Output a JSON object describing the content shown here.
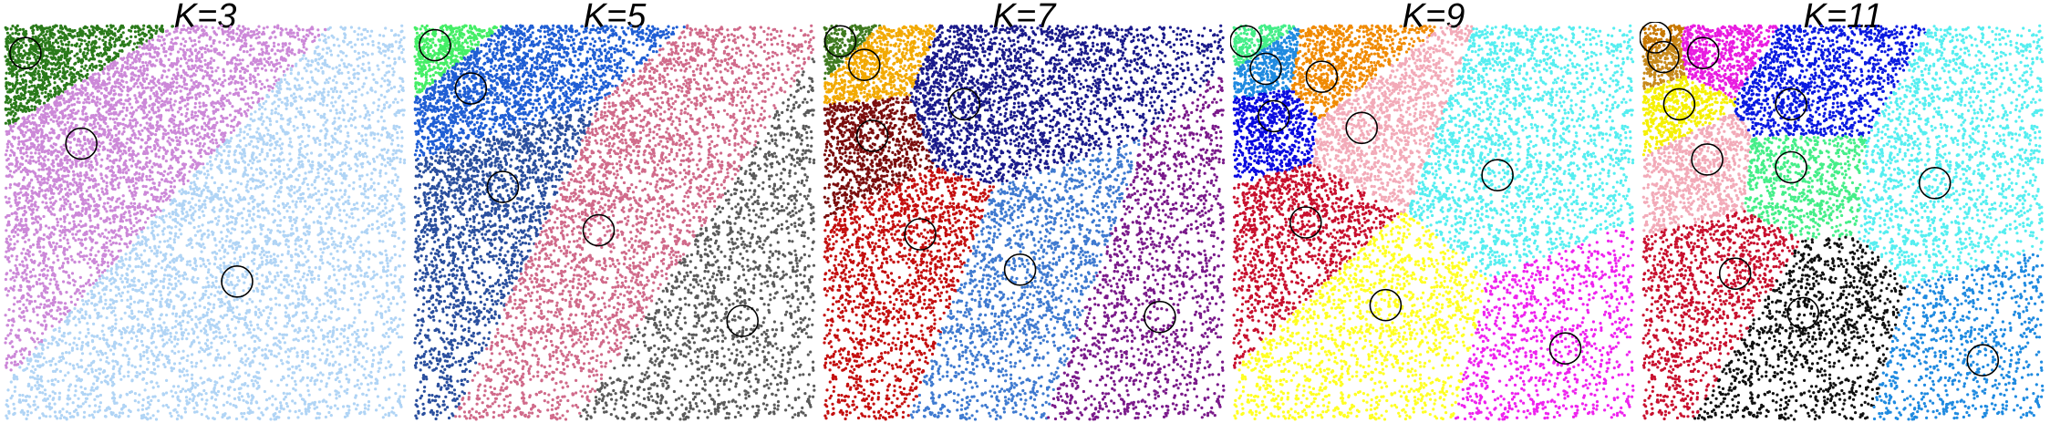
{
  "chart_data": [
    {
      "type": "scatter",
      "title": "K=3",
      "k": 3,
      "xlim": [
        0,
        1
      ],
      "ylim": [
        0,
        1
      ],
      "centroids": [
        {
          "x": 0.05,
          "y": 0.93,
          "color": "#2a7a1a"
        },
        {
          "x": 0.19,
          "y": 0.7,
          "color": "#cc88d8"
        },
        {
          "x": 0.58,
          "y": 0.35,
          "color": "#b0d4f5"
        }
      ]
    },
    {
      "type": "scatter",
      "title": "K=5",
      "k": 5,
      "xlim": [
        0,
        1
      ],
      "ylim": [
        0,
        1
      ],
      "centroids": [
        {
          "x": 0.05,
          "y": 0.95,
          "color": "#44ee66"
        },
        {
          "x": 0.14,
          "y": 0.84,
          "color": "#1f5ed4"
        },
        {
          "x": 0.22,
          "y": 0.59,
          "color": "#2a4f9e"
        },
        {
          "x": 0.46,
          "y": 0.48,
          "color": "#d06a8a"
        },
        {
          "x": 0.82,
          "y": 0.25,
          "color": "#5a5a5a"
        }
      ]
    },
    {
      "type": "scatter",
      "title": "K=7",
      "k": 7,
      "xlim": [
        0,
        1
      ],
      "ylim": [
        0,
        1
      ],
      "centroids": [
        {
          "x": 0.04,
          "y": 0.96,
          "color": "#3f7a1f"
        },
        {
          "x": 0.1,
          "y": 0.9,
          "color": "#f2a900"
        },
        {
          "x": 0.12,
          "y": 0.72,
          "color": "#7a0d0d"
        },
        {
          "x": 0.35,
          "y": 0.8,
          "color": "#1a1a8a"
        },
        {
          "x": 0.24,
          "y": 0.47,
          "color": "#c40f0f"
        },
        {
          "x": 0.49,
          "y": 0.38,
          "color": "#3f7ad0"
        },
        {
          "x": 0.84,
          "y": 0.26,
          "color": "#7a1a8a"
        }
      ]
    },
    {
      "type": "scatter",
      "title": "K=9",
      "k": 9,
      "xlim": [
        0,
        1
      ],
      "ylim": [
        0,
        1
      ],
      "centroids": [
        {
          "x": 0.03,
          "y": 0.96,
          "color": "#44ee88"
        },
        {
          "x": 0.08,
          "y": 0.89,
          "color": "#1f8ae0"
        },
        {
          "x": 0.22,
          "y": 0.87,
          "color": "#f08a00"
        },
        {
          "x": 0.1,
          "y": 0.77,
          "color": "#0a0ae0"
        },
        {
          "x": 0.32,
          "y": 0.74,
          "color": "#f2aab8"
        },
        {
          "x": 0.66,
          "y": 0.62,
          "color": "#55eef0"
        },
        {
          "x": 0.18,
          "y": 0.5,
          "color": "#c8102e"
        },
        {
          "x": 0.38,
          "y": 0.29,
          "color": "#ffff22"
        },
        {
          "x": 0.83,
          "y": 0.18,
          "color": "#ee22ee"
        }
      ]
    },
    {
      "type": "scatter",
      "title": "K=11",
      "k": 11,
      "xlim": [
        0,
        1
      ],
      "ylim": [
        0,
        1
      ],
      "centroids": [
        {
          "x": 0.03,
          "y": 0.97,
          "color": "#c87800"
        },
        {
          "x": 0.05,
          "y": 0.92,
          "color": "#c88a1a"
        },
        {
          "x": 0.15,
          "y": 0.93,
          "color": "#e81ce0"
        },
        {
          "x": 0.09,
          "y": 0.8,
          "color": "#f5f000"
        },
        {
          "x": 0.16,
          "y": 0.66,
          "color": "#f2aab8"
        },
        {
          "x": 0.37,
          "y": 0.8,
          "color": "#0a1ae0"
        },
        {
          "x": 0.37,
          "y": 0.64,
          "color": "#44ee88"
        },
        {
          "x": 0.73,
          "y": 0.6,
          "color": "#55eef0"
        },
        {
          "x": 0.23,
          "y": 0.37,
          "color": "#c8102e"
        },
        {
          "x": 0.4,
          "y": 0.27,
          "color": "#111111"
        },
        {
          "x": 0.85,
          "y": 0.15,
          "color": "#1f8ae0"
        }
      ]
    }
  ]
}
